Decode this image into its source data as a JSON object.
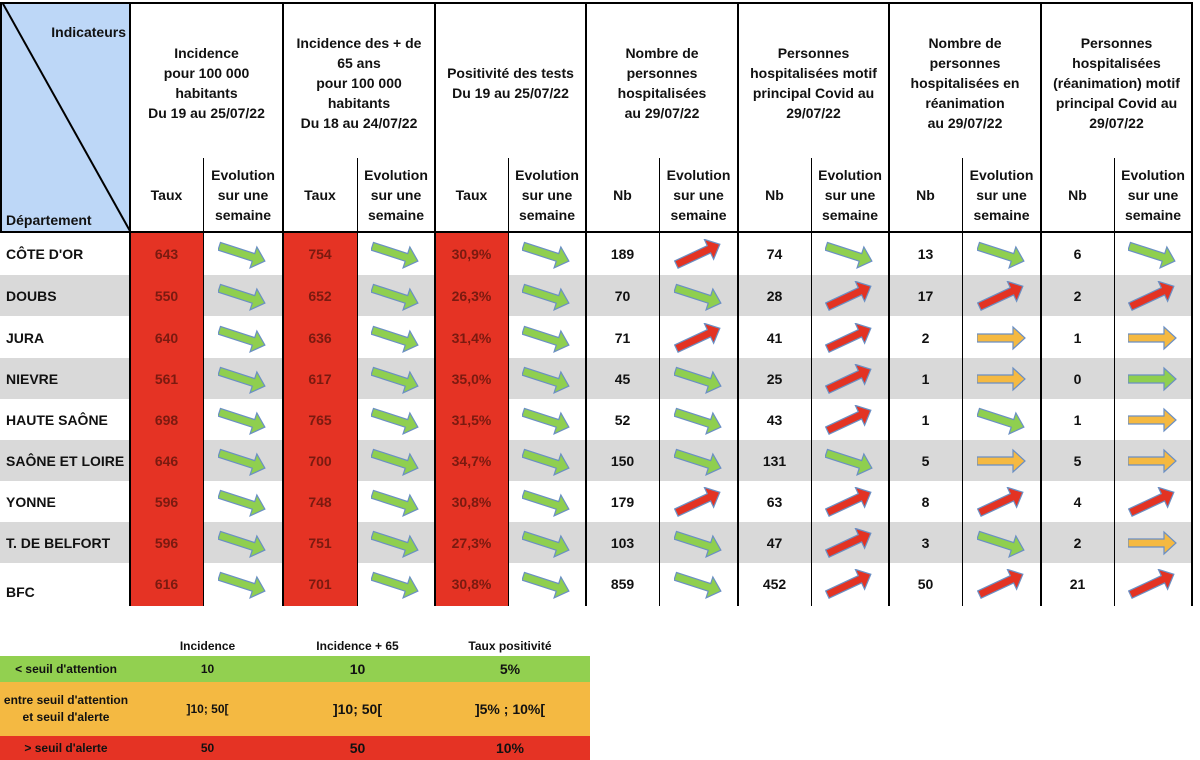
{
  "header": {
    "corner_top": "Indicateurs",
    "corner_bottom": "Département",
    "groups": [
      {
        "lines": [
          "Incidence",
          "pour 100 000",
          "habitants",
          "Du 19 au 25/07/22"
        ],
        "sub1": "Taux",
        "sub2": [
          "Evolution",
          "sur une",
          "semaine"
        ]
      },
      {
        "lines": [
          "Incidence des + de",
          "65 ans",
          "pour 100 000",
          "habitants",
          "Du 18 au 24/07/22"
        ],
        "sub1": "Taux",
        "sub2": [
          "Evolution",
          "sur une",
          "semaine"
        ]
      },
      {
        "lines": [
          "Positivité des tests",
          "Du 19 au 25/07/22"
        ],
        "sub1": "Taux",
        "sub2": [
          "Evolution",
          "sur une",
          "semaine"
        ]
      },
      {
        "lines": [
          "Nombre de",
          "personnes",
          "hospitalisées",
          "au 29/07/22"
        ],
        "sub1": "Nb",
        "sub2": [
          "Evolution",
          "sur une",
          "semaine"
        ]
      },
      {
        "lines": [
          "Personnes",
          "hospitalisées motif",
          "principal Covid au",
          "29/07/22"
        ],
        "sub1": "Nb",
        "sub2": [
          "Evolution",
          "sur une",
          "semaine"
        ]
      },
      {
        "lines": [
          "Nombre de",
          "personnes",
          "hospitalisées en",
          "réanimation",
          "au 29/07/22"
        ],
        "sub1": "Nb",
        "sub2": [
          "Evolution",
          "sur une",
          "semaine"
        ]
      },
      {
        "lines": [
          "Personnes",
          "hospitalisées",
          "(réanimation) motif",
          "principal Covid au",
          "29/07/22"
        ],
        "sub1": "Nb",
        "sub2": [
          "Evolution",
          "sur une",
          "semaine"
        ]
      }
    ]
  },
  "rows": [
    {
      "name": "CÔTE D'OR",
      "values": [
        "643",
        "754",
        "30,9%",
        "189",
        "74",
        "13",
        "6"
      ],
      "arrows": [
        "down-green",
        "down-green",
        "down-green",
        "up-red",
        "down-green",
        "down-green",
        "down-green"
      ]
    },
    {
      "name": "DOUBS",
      "values": [
        "550",
        "652",
        "26,3%",
        "70",
        "28",
        "17",
        "2"
      ],
      "arrows": [
        "down-green",
        "down-green",
        "down-green",
        "down-green",
        "up-red",
        "up-red",
        "up-red"
      ]
    },
    {
      "name": "JURA",
      "values": [
        "640",
        "636",
        "31,4%",
        "71",
        "41",
        "2",
        "1"
      ],
      "arrows": [
        "down-green",
        "down-green",
        "down-green",
        "up-red",
        "up-red",
        "flat-orange",
        "flat-orange"
      ]
    },
    {
      "name": "NIEVRE",
      "values": [
        "561",
        "617",
        "35,0%",
        "45",
        "25",
        "1",
        "0"
      ],
      "arrows": [
        "down-green",
        "down-green",
        "down-green",
        "down-green",
        "up-red",
        "flat-orange",
        "flat-green"
      ]
    },
    {
      "name": "HAUTE SAÔNE",
      "values": [
        "698",
        "765",
        "31,5%",
        "52",
        "43",
        "1",
        "1"
      ],
      "arrows": [
        "down-green",
        "down-green",
        "down-green",
        "down-green",
        "up-red",
        "down-green",
        "flat-orange"
      ]
    },
    {
      "name": "SAÔNE ET LOIRE",
      "values": [
        "646",
        "700",
        "34,7%",
        "150",
        "131",
        "5",
        "5"
      ],
      "arrows": [
        "down-green",
        "down-green",
        "down-green",
        "down-green",
        "down-green",
        "flat-orange",
        "flat-orange"
      ]
    },
    {
      "name": "YONNE",
      "values": [
        "596",
        "748",
        "30,8%",
        "179",
        "63",
        "8",
        "4"
      ],
      "arrows": [
        "down-green",
        "down-green",
        "down-green",
        "up-red",
        "up-red",
        "up-red",
        "up-red"
      ]
    },
    {
      "name": "T. DE BELFORT",
      "values": [
        "596",
        "751",
        "27,3%",
        "103",
        "47",
        "3",
        "2"
      ],
      "arrows": [
        "down-green",
        "down-green",
        "down-green",
        "down-green",
        "up-red",
        "down-green",
        "flat-orange"
      ]
    },
    {
      "name": "BFC",
      "values": [
        "616",
        "701",
        "30,8%",
        "859",
        "452",
        "50",
        "21"
      ],
      "arrows": [
        "down-green",
        "down-green",
        "down-green",
        "down-green",
        "up-red",
        "up-red",
        "up-red"
      ]
    }
  ],
  "legend": {
    "headers": [
      "Incidence",
      "Incidence + 65",
      "Taux positivité"
    ],
    "rows": [
      {
        "label": "< seuil d'attention",
        "values": [
          "10",
          "10",
          "5%"
        ],
        "color": "#92d050"
      },
      {
        "label": "entre seuil d'attention et seuil d'alerte",
        "values": [
          "]10; 50[",
          "]10; 50[",
          "]5% ; 10%["
        ],
        "color": "#f4b942"
      },
      {
        "label": "> seuil d'alerte",
        "values": [
          "50",
          "50",
          "10%"
        ],
        "color": "#e53324"
      }
    ]
  },
  "colors": {
    "corner": "#bdd7f7",
    "red_col": "#e53324",
    "stripe": "#d9d9d9",
    "arrow_green": "#8fcf4f",
    "arrow_red": "#e33323",
    "arrow_orange": "#f5b941",
    "arrow_outline": "#6a8fc4"
  }
}
